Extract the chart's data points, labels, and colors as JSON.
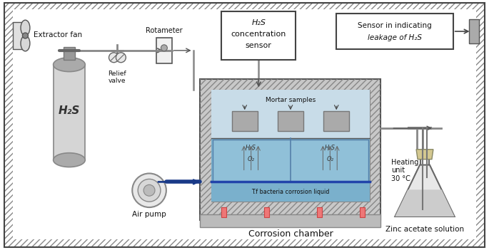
{
  "fig_width": 6.85,
  "fig_height": 3.51,
  "bg_color": "#f0f0f0",
  "labels": {
    "extractor_fan": "Extractor fan",
    "rotameter": "Rotameter",
    "relief_valve": "Relief\nvalve",
    "h2s_tank": "H₂S",
    "h2s_sensor_line1": "H₂S",
    "h2s_sensor_line2": "concentration",
    "h2s_sensor_line3": "sensor",
    "sensor_box_line1": "Sensor in indicating",
    "sensor_box_line2": "leakage of H₂S",
    "mortar_samples": "Mortar samples",
    "h2s_label1": "H₂S",
    "h2s_label2": "H₂S",
    "o2_label1": "O₂",
    "o2_label2": "O₂",
    "bacteria_liquid": "T.f bacteria corrosion liquid",
    "air_pump": "Air pump",
    "corrosion_chamber": "Corrosion chamber",
    "zinc_acetate": "Zinc acetate solution",
    "heating_unit": "Heating\nunit\n30 °C"
  }
}
